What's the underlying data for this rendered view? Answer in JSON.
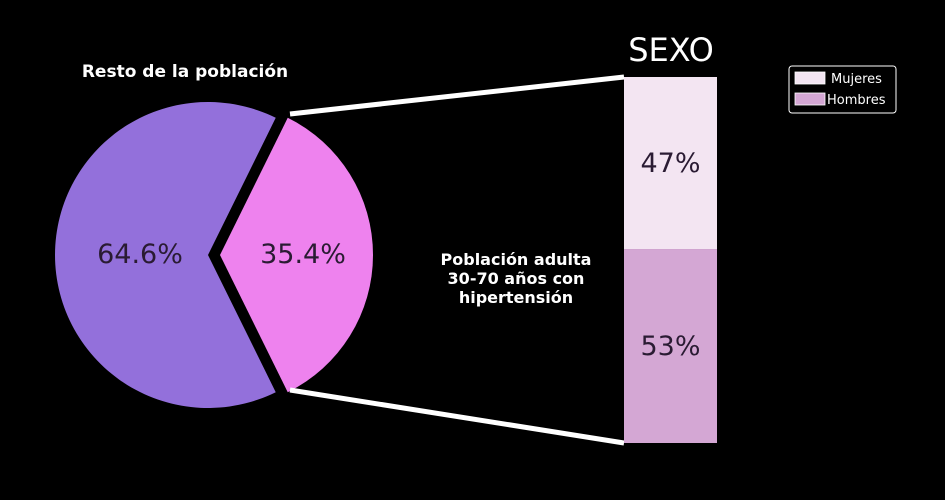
{
  "chart_data": {
    "type": "bar-of-pie",
    "pie": {
      "slices": [
        {
          "label": "Resto de la población",
          "value": 64.6,
          "display": "64.6%",
          "color": "#9370DB"
        },
        {
          "label": "Población adulta 30-70 años con hipertensión",
          "value": 35.4,
          "display": "35.4%",
          "color": "#EE82EE"
        }
      ],
      "exploded_label_lines": [
        "Población  adulta",
        "30-70 años con",
        "hipertensión"
      ]
    },
    "bar": {
      "title": "SEXO",
      "segments": [
        {
          "name": "Mujeres",
          "value": 47,
          "display": "47%",
          "color": "#F3E5F2"
        },
        {
          "name": "Hombres",
          "value": 53,
          "display": "53%",
          "color": "#D4A7D4"
        }
      ]
    },
    "legend": {
      "position": "top-right",
      "entries": [
        "Mujeres",
        "Hombres"
      ]
    },
    "connector_color": "#ffffff",
    "background": "#000000"
  }
}
